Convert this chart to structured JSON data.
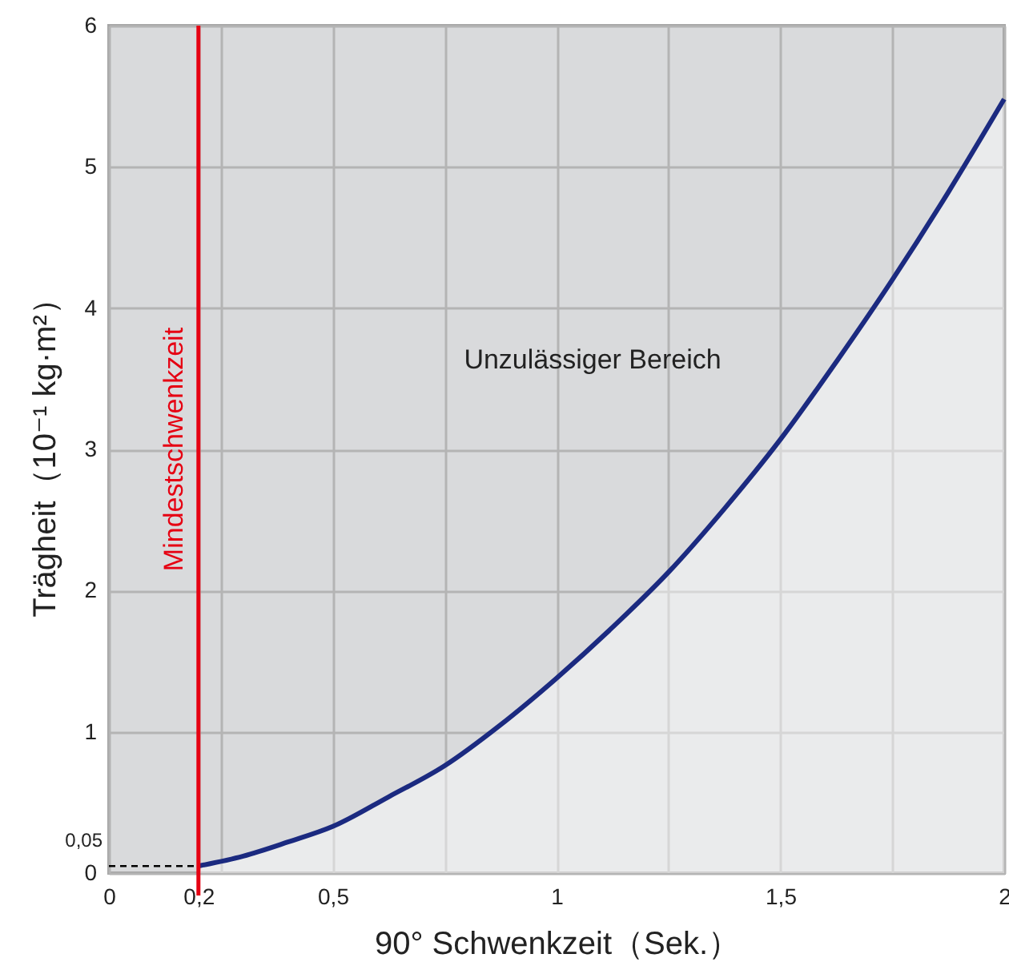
{
  "chart_data": {
    "type": "area",
    "xlabel": "90° Schwenkzeit（Sek.）",
    "ylabel": "Trägheit（10⁻¹ kg·m²）",
    "xlim": [
      0,
      2
    ],
    "ylim": [
      0,
      6
    ],
    "xticks": [
      0,
      {
        "value": 0.2,
        "label": "0,2"
      },
      {
        "value": 0.25,
        "label": null
      },
      {
        "value": 0.5,
        "label": "0,5"
      },
      {
        "value": 0.75,
        "label": null
      },
      1,
      {
        "value": 1.25,
        "label": null
      },
      {
        "value": 1.5,
        "label": "1,5"
      },
      {
        "value": 1.75,
        "label": null
      },
      2
    ],
    "yticks": [
      0,
      1,
      2,
      3,
      4,
      5,
      6
    ],
    "grid": true,
    "series": [
      {
        "type": "area",
        "color": "#1b2a80",
        "x": [
          0.2,
          0.3,
          0.4,
          0.5,
          0.625,
          0.75,
          0.875,
          1,
          1.125,
          1.25,
          1.375,
          1.5,
          1.625,
          1.75,
          1.875,
          2
        ],
        "values": [
          0.05,
          0.12,
          0.22,
          0.33,
          0.54,
          0.76,
          1.05,
          1.38,
          1.74,
          2.13,
          2.58,
          3.07,
          3.62,
          4.2,
          4.82,
          5.48
        ]
      }
    ],
    "ref_lines": [
      {
        "axis": "x",
        "value": 0.2,
        "label": "Mindestschwenkzeit",
        "color": "#e60012"
      },
      {
        "axis": "y",
        "value": 0.05,
        "color": "#000000",
        "line_style": "dashed"
      }
    ],
    "annotations": [
      "Unzulässiger Bereich",
      {
        "text": "0,05",
        "x": 0,
        "y": 0.05
      }
    ]
  }
}
